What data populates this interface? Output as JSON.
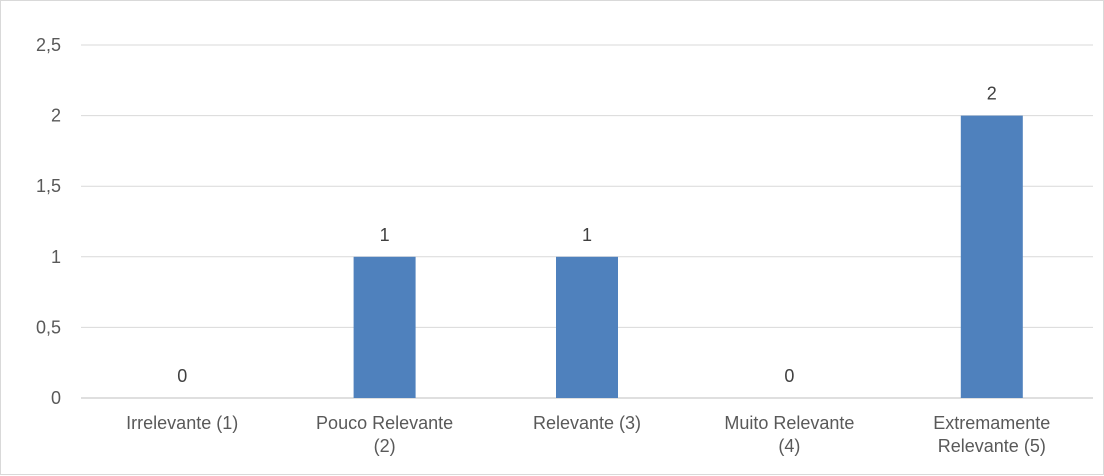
{
  "chart_data": {
    "type": "bar",
    "categories": [
      [
        "Irrelevante (1)"
      ],
      [
        "Pouco Relevante",
        "(2)"
      ],
      [
        "Relevante (3)"
      ],
      [
        "Muito Relevante",
        "(4)"
      ],
      [
        "Extremamente",
        "Relevante (5)"
      ]
    ],
    "values": [
      0,
      1,
      1,
      0,
      2
    ],
    "value_labels": [
      "0",
      "1",
      "1",
      "0",
      "2"
    ],
    "y_ticks": [
      0,
      0.5,
      1,
      1.5,
      2,
      2.5
    ],
    "y_tick_labels": [
      "0",
      "0,5",
      "1",
      "1,5",
      "2",
      "2,5"
    ],
    "ylim": [
      0,
      2.5
    ],
    "title": "",
    "xlabel": "",
    "ylabel": "",
    "grid": true,
    "legend": "none",
    "colors": {
      "bar": "#4f81bd",
      "grid": "#d9d9d9",
      "axis": "#bfbfbf",
      "text": "#595959"
    }
  }
}
